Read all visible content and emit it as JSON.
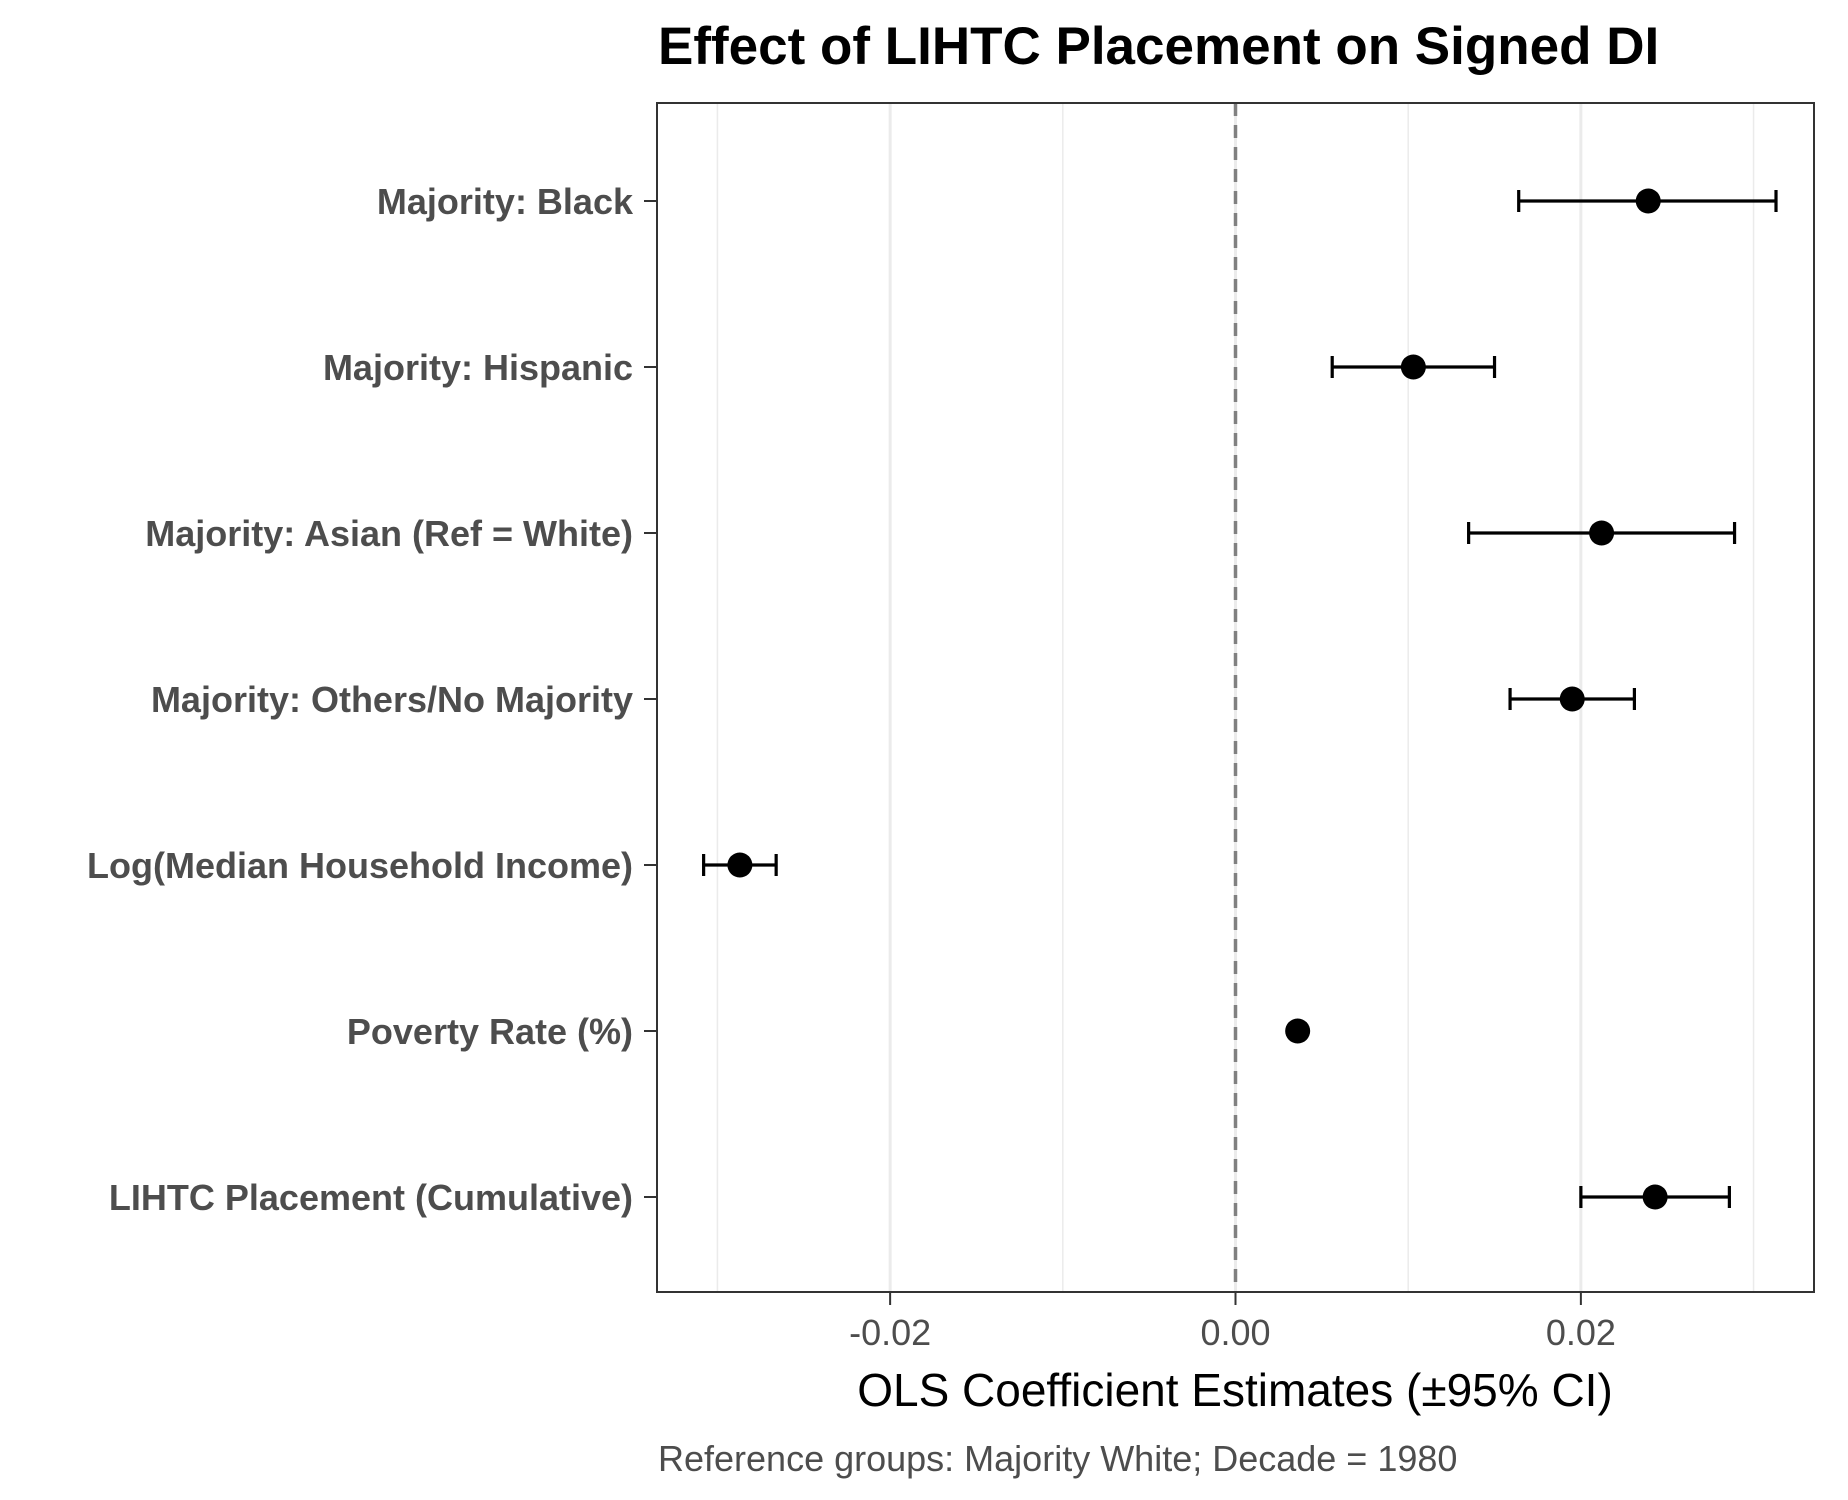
{
  "chart_data": {
    "type": "scatter",
    "title": "Effect of LIHTC Placement on Signed DI",
    "xlabel": "OLS Coefficient Estimates (±95% CI)",
    "caption": "Reference groups: Majority White; Decade = 1980",
    "xlim": [
      -0.0335,
      0.0335
    ],
    "xticks": [
      -0.02,
      0.0,
      0.02
    ],
    "xtick_labels": [
      "-0.02",
      "0.00",
      "0.02"
    ],
    "minor_gridlines": [
      -0.03,
      -0.01,
      0.01,
      0.03
    ],
    "reference_line": 0,
    "grid": true,
    "legend": "none",
    "terms": [
      {
        "label": "Majority: Black",
        "estimate": 0.0239,
        "ci_low": 0.0164,
        "ci_high": 0.0313
      },
      {
        "label": "Majority: Hispanic",
        "estimate": 0.0103,
        "ci_low": 0.0056,
        "ci_high": 0.015
      },
      {
        "label": "Majority: Asian (Ref = White)",
        "estimate": 0.0212,
        "ci_low": 0.0135,
        "ci_high": 0.0289
      },
      {
        "label": "Majority: Others/No Majority",
        "estimate": 0.0195,
        "ci_low": 0.0159,
        "ci_high": 0.0231
      },
      {
        "label": "Log(Median Household Income)",
        "estimate": -0.0287,
        "ci_low": -0.0308,
        "ci_high": -0.0266
      },
      {
        "label": "Poverty Rate (%)",
        "estimate": 0.0036,
        "ci_low": 0.0035,
        "ci_high": 0.0037
      },
      {
        "label": "LIHTC Placement (Cumulative)",
        "estimate": 0.0243,
        "ci_low": 0.02,
        "ci_high": 0.0286
      }
    ]
  },
  "colors": {
    "point": "#000000",
    "errorbar": "#000000",
    "panel_border": "#333333",
    "grid_major": "#ebebeb",
    "grid_minor": "#ebebeb",
    "reference_line": "#808080",
    "axis_text": "#4d4d4d",
    "title": "#000000"
  }
}
